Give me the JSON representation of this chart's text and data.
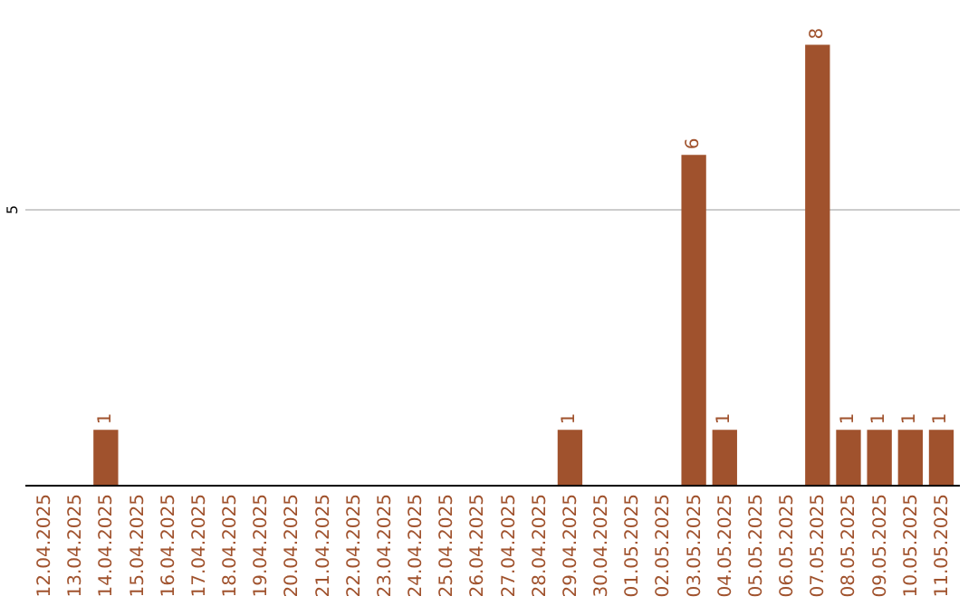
{
  "chart_data": {
    "type": "bar",
    "categories": [
      "12.04.2025",
      "13.04.2025",
      "14.04.2025",
      "15.04.2025",
      "16.04.2025",
      "17.04.2025",
      "18.04.2025",
      "19.04.2025",
      "20.04.2025",
      "21.04.2025",
      "22.04.2025",
      "23.04.2025",
      "24.04.2025",
      "25.04.2025",
      "26.04.2025",
      "27.04.2025",
      "28.04.2025",
      "29.04.2025",
      "30.04.2025",
      "01.05.2025",
      "02.05.2025",
      "03.05.2025",
      "04.05.2025",
      "05.05.2025",
      "06.05.2025",
      "07.05.2025",
      "08.05.2025",
      "09.05.2025",
      "10.05.2025",
      "11.05.2025"
    ],
    "values": [
      0,
      0,
      1,
      0,
      0,
      0,
      0,
      0,
      0,
      0,
      0,
      0,
      0,
      0,
      0,
      0,
      0,
      1,
      0,
      0,
      0,
      6,
      1,
      0,
      0,
      8,
      1,
      1,
      1,
      1
    ],
    "value_labels": [
      null,
      null,
      "1",
      null,
      null,
      null,
      null,
      null,
      null,
      null,
      null,
      null,
      null,
      null,
      null,
      null,
      null,
      "1",
      null,
      null,
      null,
      "6",
      "1",
      null,
      null,
      "8",
      "1",
      "1",
      "1",
      "1"
    ],
    "color": "#a0522d",
    "ref_lines": [
      {
        "axis": "y",
        "value": 5,
        "label": "5",
        "color": "#cccccc"
      }
    ],
    "legend": false
  }
}
